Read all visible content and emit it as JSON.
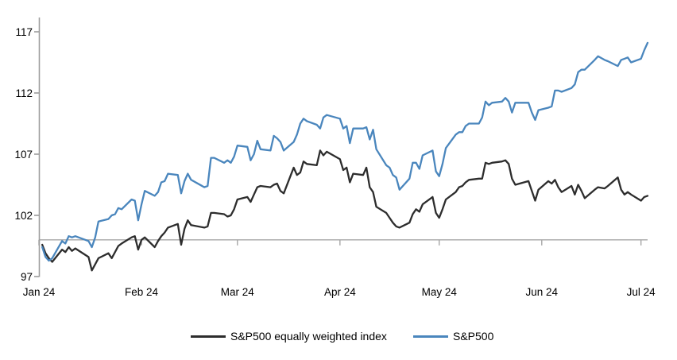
{
  "chart_data": {
    "type": "line",
    "title": "",
    "xlabel": "",
    "ylabel": "",
    "ylim": [
      97,
      117
    ],
    "y_tick_labels": [
      "117",
      "112",
      "107",
      "102",
      "97"
    ],
    "y_tick_values": [
      117,
      112,
      107,
      102,
      97
    ],
    "x_tick_labels": [
      "Jan 24",
      "Feb 24",
      "Mar 24",
      "Apr 24",
      "May 24",
      "Jun 24",
      "Jul 24"
    ],
    "month_tick_doys": [
      1,
      32,
      61,
      92,
      122,
      153,
      183
    ],
    "baseline_value": 100,
    "grid": "off",
    "legend_position": "bottom",
    "x_unit": "trading days Jan-Jul 2024 (day of year)",
    "doys": [
      2,
      3,
      4,
      5,
      8,
      9,
      10,
      11,
      12,
      16,
      17,
      18,
      19,
      22,
      23,
      24,
      25,
      26,
      29,
      30,
      31,
      32,
      33,
      36,
      37,
      38,
      39,
      40,
      43,
      44,
      45,
      46,
      47,
      51,
      52,
      53,
      54,
      57,
      58,
      59,
      60,
      61,
      64,
      65,
      66,
      67,
      68,
      71,
      72,
      73,
      74,
      75,
      78,
      79,
      80,
      81,
      82,
      85,
      86,
      87,
      88,
      92,
      93,
      94,
      95,
      96,
      99,
      100,
      101,
      102,
      103,
      106,
      107,
      108,
      109,
      110,
      113,
      114,
      115,
      116,
      117,
      120,
      121,
      122,
      123,
      124,
      127,
      128,
      129,
      130,
      131,
      134,
      135,
      136,
      137,
      138,
      141,
      142,
      143,
      144,
      145,
      149,
      150,
      151,
      152,
      155,
      156,
      157,
      158,
      159,
      162,
      163,
      164,
      165,
      166,
      169,
      170,
      172,
      173,
      176,
      177,
      178,
      179,
      180,
      183,
      184,
      185
    ],
    "series": [
      {
        "name": "S&P500 equally weighted index",
        "color": "#2d2d2d",
        "values": [
          99.6,
          98.9,
          98.5,
          98.2,
          99.2,
          99.0,
          99.4,
          99.1,
          99.3,
          98.6,
          97.5,
          98.0,
          98.5,
          98.9,
          98.5,
          99.0,
          99.5,
          99.7,
          100.2,
          100.3,
          99.2,
          100.0,
          100.2,
          99.4,
          99.9,
          100.3,
          100.6,
          101.0,
          101.3,
          99.6,
          100.9,
          101.6,
          101.2,
          101.0,
          101.1,
          102.2,
          102.2,
          102.1,
          101.9,
          102.0,
          102.5,
          103.3,
          103.5,
          103.1,
          103.7,
          104.3,
          104.4,
          104.3,
          104.5,
          104.6,
          104.0,
          103.8,
          105.9,
          105.3,
          105.5,
          106.4,
          106.2,
          106.1,
          107.3,
          106.9,
          107.2,
          106.6,
          105.7,
          105.9,
          104.7,
          105.4,
          105.3,
          105.9,
          104.3,
          103.9,
          102.7,
          102.2,
          101.8,
          101.4,
          101.1,
          101.0,
          101.4,
          102.1,
          102.5,
          102.3,
          102.9,
          103.5,
          102.2,
          101.8,
          102.5,
          103.3,
          103.9,
          104.3,
          104.4,
          104.7,
          104.9,
          105.0,
          105.0,
          106.3,
          106.2,
          106.3,
          106.4,
          106.5,
          106.2,
          105.0,
          104.5,
          104.8,
          104.0,
          103.2,
          104.1,
          104.8,
          104.6,
          104.9,
          104.3,
          103.9,
          104.4,
          103.7,
          104.5,
          104.0,
          103.4,
          104.1,
          104.3,
          104.2,
          104.4,
          105.1,
          104.1,
          103.7,
          103.9,
          103.7,
          103.2,
          103.5,
          103.6
        ]
      },
      {
        "name": "S&P500",
        "color": "#4a86bd",
        "values": [
          99.4,
          98.6,
          98.3,
          98.5,
          99.9,
          99.7,
          100.3,
          100.2,
          100.3,
          99.9,
          99.4,
          100.2,
          101.5,
          101.7,
          102.0,
          102.1,
          102.6,
          102.5,
          103.3,
          103.2,
          101.6,
          102.9,
          104.0,
          103.6,
          103.9,
          104.7,
          104.8,
          105.4,
          105.3,
          103.8,
          104.8,
          105.4,
          104.9,
          104.3,
          104.4,
          106.7,
          106.7,
          106.3,
          106.5,
          106.3,
          106.8,
          107.7,
          107.6,
          106.5,
          107.0,
          108.1,
          107.4,
          107.3,
          108.5,
          108.3,
          108.0,
          107.3,
          108.0,
          108.6,
          109.5,
          109.9,
          109.7,
          109.4,
          109.1,
          110.0,
          110.2,
          109.9,
          109.1,
          109.3,
          107.9,
          109.1,
          109.1,
          109.2,
          108.2,
          109.0,
          107.4,
          106.1,
          105.9,
          105.3,
          105.1,
          104.1,
          105.0,
          106.3,
          106.3,
          105.8,
          106.9,
          107.3,
          105.6,
          105.2,
          106.2,
          107.5,
          108.6,
          108.8,
          108.8,
          109.3,
          109.5,
          109.5,
          110.0,
          111.3,
          111.0,
          111.2,
          111.3,
          111.6,
          111.3,
          110.4,
          111.2,
          111.2,
          110.4,
          109.8,
          110.6,
          110.8,
          110.9,
          112.2,
          112.2,
          112.1,
          112.4,
          112.7,
          113.7,
          113.9,
          113.9,
          114.7,
          115.0,
          114.7,
          114.6,
          114.2,
          114.7,
          114.8,
          114.9,
          114.5,
          114.8,
          115.5,
          116.1
        ]
      }
    ],
    "colors": {
      "axis": "#9d9d9d",
      "baseline": "#a6a6a6",
      "background": "#ffffff",
      "text": "#000000"
    }
  }
}
